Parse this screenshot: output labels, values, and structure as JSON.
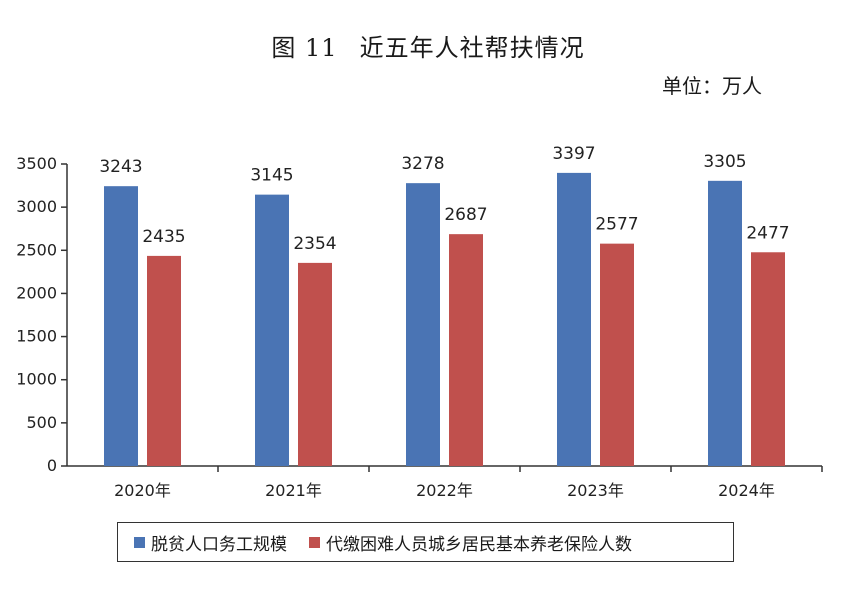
{
  "title": {
    "figure_no": "图 11",
    "text": "近五年人社帮扶情况"
  },
  "unit": "单位：万人",
  "chart_data": {
    "type": "bar",
    "categories": [
      "2020年",
      "2021年",
      "2022年",
      "2023年",
      "2024年"
    ],
    "series": [
      {
        "name": "脱贫人口务工规模",
        "color": "#4a74b4",
        "values": [
          3243,
          3145,
          3278,
          3397,
          3305
        ]
      },
      {
        "name": "代缴困难人员城乡居民基本养老保险人数",
        "color": "#c0504d",
        "values": [
          2435,
          2354,
          2687,
          2577,
          2477
        ]
      }
    ],
    "ylim": [
      0,
      3500
    ],
    "yticks": [
      0,
      500,
      1000,
      1500,
      2000,
      2500,
      3000,
      3500
    ],
    "grid": false,
    "legend_position": "bottom"
  }
}
